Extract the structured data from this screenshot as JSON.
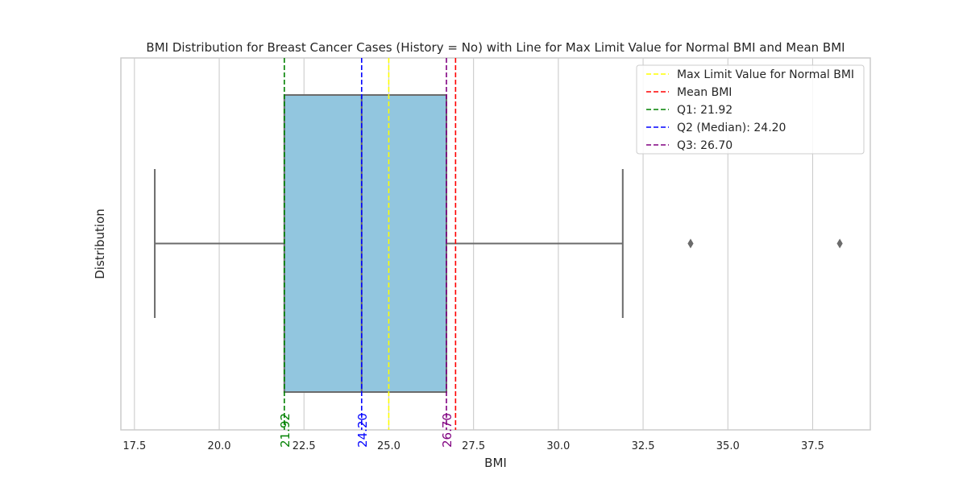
{
  "chart_data": {
    "type": "box",
    "title": "BMI Distribution for Breast Cancer Cases (History = No) with Line for Max Limit Value for Normal BMI and Mean BMI",
    "xlabel": "BMI",
    "ylabel": "Distribution",
    "xlim": [
      17.1,
      39.2
    ],
    "xticks": [
      17.5,
      20.0,
      22.5,
      25.0,
      27.5,
      30.0,
      32.5,
      35.0,
      37.5
    ],
    "xtick_labels": [
      "17.5",
      "20.0",
      "22.5",
      "25.0",
      "27.5",
      "30.0",
      "32.5",
      "35.0",
      "37.5"
    ],
    "grid": "x",
    "box": {
      "whisker_low": 18.1,
      "q1": 21.92,
      "median": 24.2,
      "q3": 26.7,
      "whisker_high": 31.9,
      "outliers": [
        33.9,
        38.3
      ],
      "fill_color": "#92c6df",
      "line_color": "#6b6b6b"
    },
    "reference_lines": [
      {
        "name": "Max Limit Value for Normal BMI",
        "value": 25.0,
        "color": "#ffff00",
        "label": ""
      },
      {
        "name": "Mean BMI",
        "value": 26.97,
        "color": "#ff0000",
        "label": ""
      },
      {
        "name": "Q1: 21.92",
        "value": 21.92,
        "color": "#008000",
        "label": "21.92"
      },
      {
        "name": "Q2 (Median): 24.20",
        "value": 24.2,
        "color": "#0000ff",
        "label": "24.20"
      },
      {
        "name": "Q3: 26.70",
        "value": 26.7,
        "color": "#800080",
        "label": "26.70"
      }
    ],
    "legend_position": "top-right"
  }
}
